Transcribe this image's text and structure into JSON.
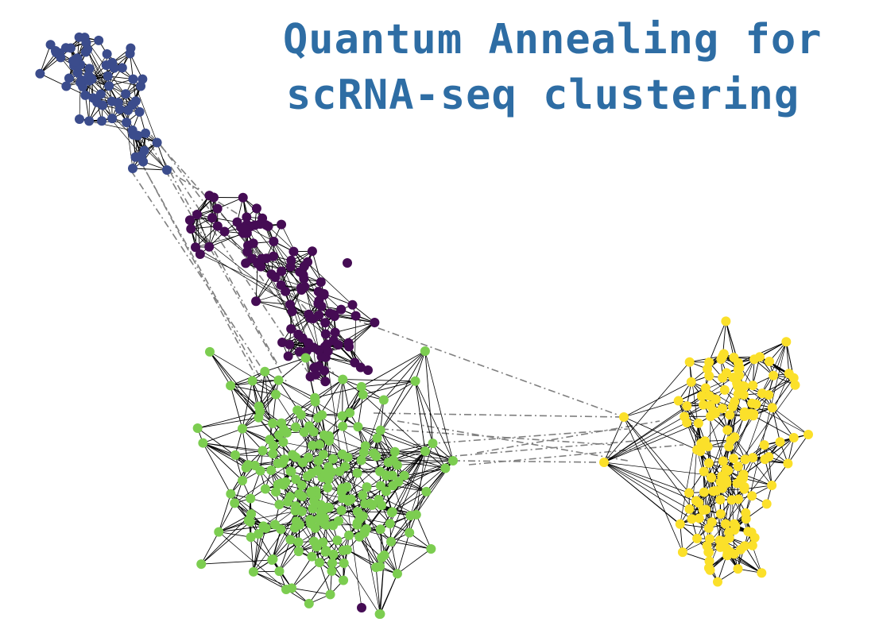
{
  "title": {
    "line1": "Quantum Annealing for",
    "line2": "scRNA-seq clustering"
  },
  "colors": {
    "title": "#2e6da4",
    "edge_within": "#000000",
    "edge_between": "#7f7f7f",
    "background": "#ffffff"
  },
  "clusters": [
    {
      "id": "cluster-1",
      "color": "#3b4c8c",
      "node_count": 70
    },
    {
      "id": "cluster-2",
      "color": "#450c54",
      "node_count": 110
    },
    {
      "id": "cluster-3",
      "color": "#7ccd50",
      "node_count": 230
    },
    {
      "id": "cluster-4",
      "color": "#fbe02a",
      "node_count": 160
    }
  ]
}
